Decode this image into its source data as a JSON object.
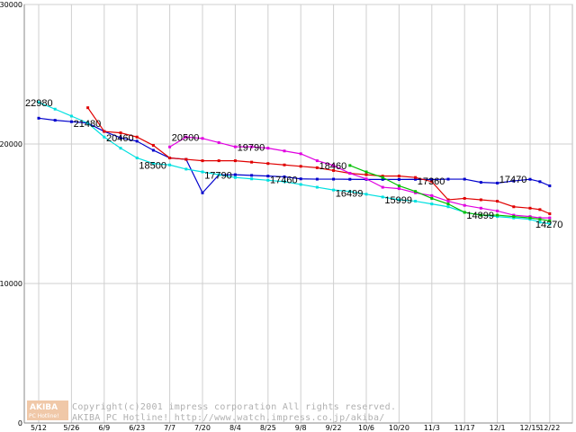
{
  "chart_data": {
    "type": "line",
    "title": "",
    "xlabel": "",
    "ylabel": "",
    "ylim": [
      0,
      30000
    ],
    "yticks": [
      0,
      10000,
      20000,
      30000
    ],
    "grid": true,
    "categories": [
      "5/12",
      "5/26",
      "6/9",
      "6/23",
      "7/7",
      "7/20",
      "8/4",
      "8/25",
      "9/8",
      "9/22",
      "10/6",
      "10/20",
      "11/3",
      "11/17",
      "12/1",
      "12/15",
      "12/22"
    ],
    "x_positions": [
      0,
      1,
      2,
      3,
      4,
      5,
      6,
      7,
      8,
      9,
      10,
      11,
      12,
      13,
      14,
      15,
      15.6
    ],
    "series": [
      {
        "name": "series-blue",
        "color": "#0000cc",
        "points": [
          [
            0,
            21850
          ],
          [
            0.5,
            21700
          ],
          [
            1,
            21600
          ],
          [
            1.5,
            21500
          ],
          [
            2,
            20900
          ],
          [
            2.5,
            20450
          ],
          [
            3,
            20200
          ],
          [
            3.5,
            19550
          ],
          [
            4,
            19000
          ],
          [
            4.5,
            18900
          ],
          [
            5,
            16500
          ],
          [
            5.5,
            17790
          ],
          [
            6,
            17800
          ],
          [
            6.5,
            17750
          ],
          [
            7,
            17700
          ],
          [
            7.5,
            17650
          ],
          [
            8,
            17500
          ],
          [
            8.5,
            17480
          ],
          [
            9,
            17480
          ],
          [
            9.5,
            17470
          ],
          [
            10,
            17460
          ],
          [
            10.5,
            17460
          ],
          [
            11,
            17460
          ],
          [
            11.5,
            17470
          ],
          [
            12,
            17450
          ],
          [
            12.5,
            17480
          ],
          [
            13,
            17480
          ],
          [
            13.5,
            17250
          ],
          [
            14,
            17200
          ],
          [
            14.5,
            17350
          ],
          [
            15,
            17470
          ],
          [
            15.3,
            17300
          ],
          [
            15.6,
            17000
          ]
        ]
      },
      {
        "name": "series-cyan",
        "color": "#00e0e0",
        "points": [
          [
            0,
            22980
          ],
          [
            0.5,
            22500
          ],
          [
            1,
            22000
          ],
          [
            1.5,
            21500
          ],
          [
            2,
            20500
          ],
          [
            2.5,
            19700
          ],
          [
            3,
            19000
          ],
          [
            3.5,
            18600
          ],
          [
            4,
            18500
          ],
          [
            4.5,
            18200
          ],
          [
            5,
            18000
          ],
          [
            5.5,
            17800
          ],
          [
            6,
            17600
          ],
          [
            6.5,
            17500
          ],
          [
            7,
            17400
          ],
          [
            7.5,
            17300
          ],
          [
            8,
            17100
          ],
          [
            8.5,
            16900
          ],
          [
            9,
            16700
          ],
          [
            9.5,
            16600
          ],
          [
            10,
            16400
          ],
          [
            10.5,
            16200
          ],
          [
            11,
            16000
          ],
          [
            11.5,
            15900
          ],
          [
            12,
            15700
          ],
          [
            12.5,
            15500
          ],
          [
            13,
            15100
          ],
          [
            13.5,
            14900
          ],
          [
            14,
            14800
          ],
          [
            14.5,
            14700
          ],
          [
            15,
            14600
          ],
          [
            15.3,
            14400
          ],
          [
            15.6,
            14270
          ]
        ]
      },
      {
        "name": "series-red",
        "color": "#e00000",
        "points": [
          [
            1.5,
            22600
          ],
          [
            2,
            20900
          ],
          [
            2.5,
            20800
          ],
          [
            3,
            20500
          ],
          [
            3.5,
            19900
          ],
          [
            4,
            19000
          ],
          [
            4.5,
            18900
          ],
          [
            5,
            18800
          ],
          [
            5.5,
            18800
          ],
          [
            6,
            18800
          ],
          [
            6.5,
            18700
          ],
          [
            7,
            18600
          ],
          [
            7.5,
            18500
          ],
          [
            8,
            18400
          ],
          [
            8.5,
            18300
          ],
          [
            9,
            18100
          ],
          [
            9.5,
            17900
          ],
          [
            10,
            17800
          ],
          [
            10.5,
            17700
          ],
          [
            11,
            17700
          ],
          [
            11.5,
            17600
          ],
          [
            12,
            17300
          ],
          [
            12.5,
            16000
          ],
          [
            13,
            16100
          ],
          [
            13.5,
            16000
          ],
          [
            14,
            15900
          ],
          [
            14.5,
            15500
          ],
          [
            15,
            15400
          ],
          [
            15.3,
            15300
          ],
          [
            15.6,
            15000
          ]
        ]
      },
      {
        "name": "series-magenta",
        "color": "#e000e0",
        "points": [
          [
            4,
            19790
          ],
          [
            4.5,
            20500
          ],
          [
            5,
            20400
          ],
          [
            5.5,
            20100
          ],
          [
            6,
            19800
          ],
          [
            6.5,
            19800
          ],
          [
            7,
            19700
          ],
          [
            7.5,
            19500
          ],
          [
            8,
            19300
          ],
          [
            8.5,
            18800
          ],
          [
            9,
            18460
          ],
          [
            9.5,
            17900
          ],
          [
            10,
            17500
          ],
          [
            10.5,
            16900
          ],
          [
            11,
            16800
          ],
          [
            11.5,
            16500
          ],
          [
            12,
            16300
          ],
          [
            12.5,
            15900
          ],
          [
            13,
            15600
          ],
          [
            13.5,
            15400
          ],
          [
            14,
            15200
          ],
          [
            14.5,
            14900
          ],
          [
            15,
            14800
          ],
          [
            15.3,
            14700
          ],
          [
            15.6,
            14700
          ]
        ]
      },
      {
        "name": "series-green",
        "color": "#00c000",
        "points": [
          [
            9.5,
            18460
          ],
          [
            10,
            18000
          ],
          [
            10.5,
            17600
          ],
          [
            11,
            17000
          ],
          [
            11.5,
            16600
          ],
          [
            12,
            16100
          ],
          [
            12.5,
            15700
          ],
          [
            13,
            15100
          ],
          [
            13.5,
            14899
          ],
          [
            14,
            14900
          ],
          [
            14.5,
            14800
          ],
          [
            15,
            14700
          ],
          [
            15.3,
            14600
          ],
          [
            15.6,
            14500
          ]
        ]
      }
    ],
    "annotations": [
      {
        "text": "22980",
        "x": 0,
        "y": 22980
      },
      {
        "text": "21480",
        "x": 1.5,
        "y": 21480
      },
      {
        "text": "20460",
        "x": 2.5,
        "y": 20460
      },
      {
        "text": "18500",
        "x": 3.5,
        "y": 18500
      },
      {
        "text": "20500",
        "x": 4.5,
        "y": 20500
      },
      {
        "text": "17790",
        "x": 5.5,
        "y": 17790
      },
      {
        "text": "19790",
        "x": 6.5,
        "y": 19790
      },
      {
        "text": "17460",
        "x": 7.5,
        "y": 17460
      },
      {
        "text": "18460",
        "x": 9,
        "y": 18460
      },
      {
        "text": "16499",
        "x": 9.5,
        "y": 16499
      },
      {
        "text": "15999",
        "x": 11,
        "y": 15999
      },
      {
        "text": "17360",
        "x": 12,
        "y": 17360
      },
      {
        "text": "14899",
        "x": 13.5,
        "y": 14899
      },
      {
        "text": "17470",
        "x": 14.5,
        "y": 17470
      },
      {
        "text": "14270",
        "x": 15.6,
        "y": 14270
      }
    ]
  },
  "watermark": {
    "logo_top": "AKIBA",
    "logo_bottom": "PC Hotline!",
    "line1": "Copyright(c)2001 impress corporation All rights reserved.",
    "line2": "AKIBA PC Hotline!  http://www.watch.impress.co.jp/akiba/"
  }
}
